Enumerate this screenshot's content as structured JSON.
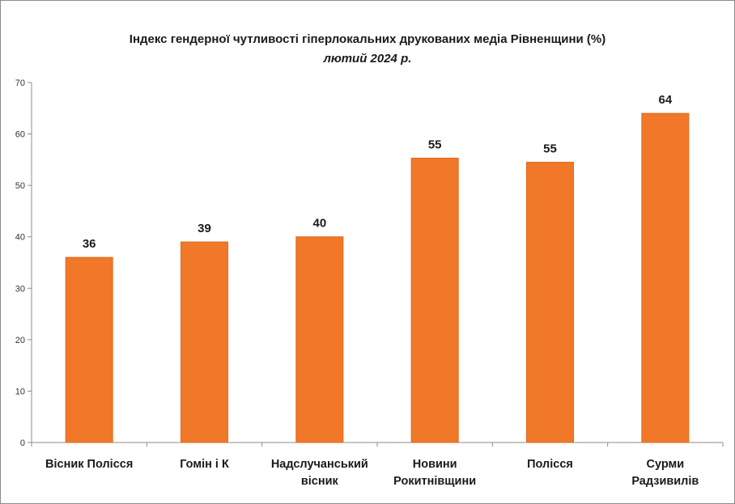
{
  "chart_data": {
    "type": "bar",
    "title": "Індекс гендерної чутливості  гіперлокальних друкованих медіа Рівненщини (%)",
    "subtitle": "лютий 2024 р.",
    "categories": [
      [
        "Вісник Полісся"
      ],
      [
        "Гомін і К"
      ],
      [
        "Надслучанський",
        "вісник"
      ],
      [
        "Новини",
        "Рокитнівщини"
      ],
      [
        "Полісся"
      ],
      [
        "Сурми",
        "Радзивилів"
      ]
    ],
    "values": [
      36,
      39,
      40,
      55.3,
      54.5,
      64
    ],
    "data_labels": [
      "36",
      "39",
      "40",
      "55",
      "55",
      "64"
    ],
    "ylim": [
      0,
      70
    ],
    "yticks": [
      0,
      10,
      20,
      30,
      40,
      50,
      60,
      70
    ],
    "xlabel": "",
    "ylabel": "",
    "grid": false,
    "legend": "none",
    "bar_color": "#F07828",
    "bar_border_color": "#E06A1E"
  }
}
